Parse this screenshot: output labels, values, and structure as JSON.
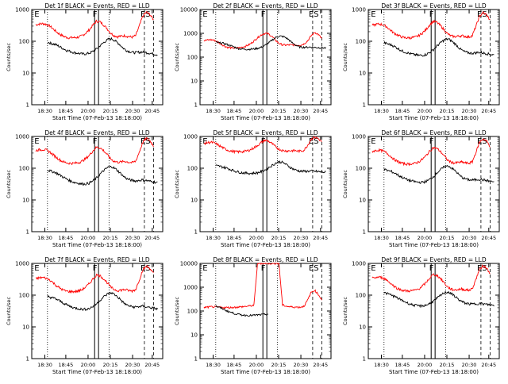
{
  "chart_data": [
    {
      "type": "line",
      "panel": "1f",
      "title": "Det 1f BLACK = Events, RED = LLD",
      "ylabel": "Counts/sec",
      "xlabel": "Start Time (07-Feb-13 18:18:00)",
      "log_y": true,
      "ylim": [
        1,
        1000
      ],
      "y_ticks": [
        "1",
        "10",
        "100",
        "1000"
      ],
      "x_tick_labels": [
        "18:30",
        "18:45",
        "20:00",
        "20:15",
        "20:30",
        "20:45"
      ],
      "markers": [
        "E",
        "F",
        "ES"
      ],
      "series": [
        {
          "color": "#ff0000",
          "values": [
            330,
            350,
            360,
            340,
            300,
            240,
            190,
            160,
            140,
            130,
            130,
            130,
            135,
            150,
            180,
            230,
            320,
            430,
            410,
            330,
            250,
            180,
            150,
            140,
            145,
            150,
            140,
            135,
            150,
            300,
            620,
            820,
            700,
            480
          ]
        },
        {
          "color": "#000000",
          "values": [
            95,
            85,
            80,
            70,
            60,
            52,
            48,
            44,
            42,
            40,
            40,
            42,
            48,
            58,
            75,
            95,
            115,
            120,
            100,
            80,
            60,
            50,
            46,
            44,
            45,
            46,
            44,
            42,
            40,
            38
          ]
        }
      ]
    },
    {
      "type": "line",
      "panel": "2f",
      "title": "Det 2f BLACK = Events, RED = LLD",
      "ylabel": "Counts/sec",
      "xlabel": "Start Time (07-Feb-13 18:18:00)",
      "log_y": true,
      "ylim": [
        1,
        10000
      ],
      "y_ticks": [
        "1",
        "10",
        "100",
        "1000",
        "10000"
      ],
      "x_tick_labels": [
        "18:30",
        "18:45",
        "20:00",
        "20:15",
        "20:30",
        "20:45"
      ],
      "markers": [
        "E",
        "F",
        "ES"
      ],
      "series": [
        {
          "color": "#ff0000",
          "values": [
            500,
            520,
            540,
            500,
            420,
            340,
            280,
            250,
            240,
            240,
            250,
            270,
            300,
            360,
            480,
            650,
            850,
            1000,
            950,
            750,
            520,
            380,
            330,
            320,
            325,
            330,
            320,
            320,
            360,
            480,
            780,
            1100,
            900,
            600
          ]
        },
        {
          "color": "#000000",
          "values": [
            420,
            400,
            380,
            340,
            300,
            260,
            230,
            220,
            215,
            215,
            220,
            235,
            260,
            310,
            400,
            540,
            700,
            760,
            720,
            580,
            420,
            320,
            270,
            260,
            260,
            265,
            255,
            250,
            250,
            240
          ]
        }
      ]
    },
    {
      "type": "line",
      "panel": "3f",
      "title": "Det 3f BLACK = Events, RED = LLD",
      "ylabel": "Counts/sec",
      "xlabel": "Start Time (07-Feb-13 18:18:00)",
      "log_y": true,
      "ylim": [
        1,
        1000
      ],
      "y_ticks": [
        "1",
        "10",
        "100",
        "1000"
      ],
      "x_tick_labels": [
        "18:30",
        "18:45",
        "20:00",
        "20:15",
        "20:30",
        "20:45"
      ],
      "markers": [
        "E",
        "F",
        "ES"
      ],
      "series": [
        {
          "color": "#ff0000",
          "values": [
            320,
            340,
            350,
            330,
            290,
            230,
            185,
            160,
            140,
            130,
            128,
            130,
            135,
            150,
            180,
            230,
            320,
            420,
            400,
            320,
            240,
            175,
            148,
            140,
            145,
            150,
            142,
            136,
            150,
            290,
            600,
            800,
            680,
            460
          ]
        },
        {
          "color": "#000000",
          "values": [
            90,
            82,
            76,
            66,
            56,
            48,
            44,
            40,
            38,
            36,
            36,
            38,
            44,
            54,
            72,
            92,
            112,
            118,
            98,
            78,
            58,
            48,
            44,
            42,
            43,
            45,
            43,
            41,
            39,
            37
          ]
        }
      ]
    },
    {
      "type": "line",
      "panel": "4f",
      "title": "Det 4f BLACK = Events, RED = LLD",
      "ylabel": "Counts/sec",
      "xlabel": "Start Time (07-Feb-13 18:18:00)",
      "log_y": true,
      "ylim": [
        1,
        1000
      ],
      "y_ticks": [
        "1",
        "10",
        "100",
        "1000"
      ],
      "x_tick_labels": [
        "18:30",
        "18:45",
        "20:00",
        "20:15",
        "20:30",
        "20:45"
      ],
      "markers": [
        "E",
        "F",
        "ES"
      ],
      "series": [
        {
          "color": "#ff0000",
          "values": [
            360,
            380,
            390,
            370,
            320,
            260,
            210,
            175,
            155,
            145,
            142,
            145,
            150,
            168,
            200,
            255,
            350,
            460,
            440,
            360,
            270,
            195,
            165,
            155,
            158,
            165,
            155,
            150,
            165,
            320,
            660,
            880,
            740,
            500
          ]
        },
        {
          "color": "#000000",
          "values": [
            88,
            80,
            74,
            64,
            54,
            46,
            40,
            36,
            34,
            32,
            32,
            34,
            40,
            50,
            68,
            88,
            108,
            112,
            94,
            74,
            56,
            46,
            42,
            40,
            41,
            43,
            41,
            39,
            37,
            35
          ]
        }
      ]
    },
    {
      "type": "line",
      "panel": "5f",
      "title": "Det 5f BLACK = Events, RED = LLD",
      "ylabel": "Counts/sec",
      "xlabel": "Start Time (07-Feb-13 18:18:00)",
      "log_y": true,
      "ylim": [
        1,
        1000
      ],
      "y_ticks": [
        "1",
        "10",
        "100",
        "1000"
      ],
      "x_tick_labels": [
        "18:30",
        "18:45",
        "20:00",
        "20:15",
        "20:30",
        "20:45"
      ],
      "markers": [
        "E",
        "F",
        "ES"
      ],
      "series": [
        {
          "color": "#ff0000",
          "values": [
            600,
            640,
            660,
            620,
            540,
            460,
            400,
            360,
            340,
            330,
            330,
            335,
            350,
            380,
            440,
            520,
            640,
            760,
            720,
            600,
            480,
            400,
            360,
            350,
            355,
            360,
            350,
            345,
            370,
            520,
            820,
            950,
            860,
            680
          ]
        },
        {
          "color": "#000000",
          "values": [
            120,
            115,
            108,
            100,
            90,
            82,
            76,
            72,
            70,
            69,
            70,
            72,
            78,
            88,
            105,
            125,
            150,
            160,
            145,
            120,
            100,
            88,
            82,
            80,
            80,
            82,
            80,
            78,
            76,
            74
          ]
        }
      ]
    },
    {
      "type": "line",
      "panel": "6f",
      "title": "Det 6f BLACK = Events, RED = LLD",
      "ylabel": "Counts/sec",
      "xlabel": "Start Time (07-Feb-13 18:18:00)",
      "log_y": true,
      "ylim": [
        1,
        1000
      ],
      "y_ticks": [
        "1",
        "10",
        "100",
        "1000"
      ],
      "x_tick_labels": [
        "18:30",
        "18:45",
        "20:00",
        "20:15",
        "20:30",
        "20:45"
      ],
      "markers": [
        "E",
        "F",
        "ES"
      ],
      "series": [
        {
          "color": "#ff0000",
          "values": [
            340,
            360,
            370,
            350,
            305,
            245,
            195,
            165,
            148,
            138,
            135,
            138,
            142,
            158,
            190,
            242,
            335,
            445,
            425,
            345,
            258,
            185,
            155,
            146,
            150,
            156,
            148,
            142,
            158,
            310,
            640,
            850,
            720,
            490
          ]
        },
        {
          "color": "#000000",
          "values": [
            92,
            84,
            78,
            68,
            58,
            50,
            44,
            40,
            38,
            36,
            36,
            38,
            44,
            54,
            72,
            92,
            112,
            118,
            98,
            78,
            58,
            48,
            44,
            42,
            43,
            45,
            43,
            41,
            39,
            37
          ]
        }
      ]
    },
    {
      "type": "line",
      "panel": "7f",
      "title": "Det 7f BLACK = Events, RED = LLD",
      "ylabel": "Counts/sec",
      "xlabel": "Start Time (07-Feb-13 18:18:00)",
      "log_y": true,
      "ylim": [
        1,
        1000
      ],
      "y_ticks": [
        "1",
        "10",
        "100",
        "1000"
      ],
      "x_tick_labels": [
        "18:30",
        "18:45",
        "20:00",
        "20:15",
        "20:30",
        "20:45"
      ],
      "markers": [
        "E",
        "F",
        "ES"
      ],
      "series": [
        {
          "color": "#ff0000",
          "values": [
            330,
            350,
            360,
            340,
            300,
            240,
            190,
            160,
            140,
            130,
            130,
            130,
            135,
            150,
            180,
            230,
            320,
            430,
            410,
            330,
            250,
            180,
            150,
            140,
            145,
            150,
            140,
            135,
            150,
            300,
            620,
            820,
            700,
            480
          ]
        },
        {
          "color": "#000000",
          "values": [
            92,
            84,
            78,
            68,
            58,
            50,
            44,
            40,
            38,
            36,
            36,
            38,
            44,
            54,
            72,
            92,
            112,
            118,
            98,
            78,
            58,
            48,
            44,
            42,
            43,
            45,
            43,
            41,
            39,
            37
          ]
        }
      ]
    },
    {
      "type": "line",
      "panel": "8f",
      "title": "Det 8f BLACK = Events, RED = LLD",
      "ylabel": "Counts/sec",
      "xlabel": "Start Time (07-Feb-13 18:18:00)",
      "log_y": true,
      "ylim": [
        1,
        10000
      ],
      "y_ticks": [
        "1",
        "10",
        "100",
        "1000",
        "10000"
      ],
      "x_tick_labels": [
        "18:30",
        "18:45",
        "20:00",
        "20:15",
        "20:30",
        "20:45"
      ],
      "markers": [
        "E",
        "F",
        "ES"
      ],
      "series": [
        {
          "color": "#ff0000",
          "values": [
            140,
            145,
            150,
            148,
            145,
            142,
            140,
            140,
            142,
            145,
            148,
            152,
            158,
            165,
            175,
            10000,
            10000,
            10000,
            10000,
            10000,
            10000,
            10000,
            180,
            160,
            150,
            148,
            146,
            145,
            160,
            280,
            600,
            750,
            500,
            300
          ]
        },
        {
          "color": "#000000",
          "values": [
            160,
            140,
            120,
            100,
            88,
            78,
            72,
            68,
            66,
            65,
            66,
            68,
            70,
            72,
            75,
            null,
            null,
            null,
            null,
            null,
            null,
            null,
            null,
            null,
            null,
            null,
            null,
            null,
            null,
            null
          ]
        }
      ]
    },
    {
      "type": "line",
      "panel": "9f",
      "title": "Det 9f BLACK = Events, RED = LLD",
      "ylabel": "Counts/sec",
      "xlabel": "Start Time (07-Feb-13 18:18:00)",
      "log_y": true,
      "ylim": [
        1,
        1000
      ],
      "y_ticks": [
        "1",
        "10",
        "100",
        "1000"
      ],
      "x_tick_labels": [
        "18:30",
        "18:45",
        "20:00",
        "20:15",
        "20:30",
        "20:45"
      ],
      "markers": [
        "E",
        "F",
        "ES"
      ],
      "series": [
        {
          "color": "#ff0000",
          "values": [
            340,
            360,
            370,
            350,
            305,
            245,
            195,
            165,
            148,
            138,
            135,
            138,
            142,
            158,
            190,
            242,
            335,
            445,
            425,
            345,
            258,
            185,
            155,
            146,
            150,
            156,
            148,
            142,
            158,
            310,
            640,
            850,
            720,
            490
          ]
        },
        {
          "color": "#000000",
          "values": [
            120,
            110,
            100,
            88,
            76,
            66,
            58,
            52,
            48,
            46,
            46,
            48,
            54,
            64,
            80,
            100,
            120,
            126,
            106,
            86,
            68,
            58,
            54,
            52,
            53,
            55,
            53,
            51,
            49,
            47
          ]
        }
      ]
    }
  ]
}
